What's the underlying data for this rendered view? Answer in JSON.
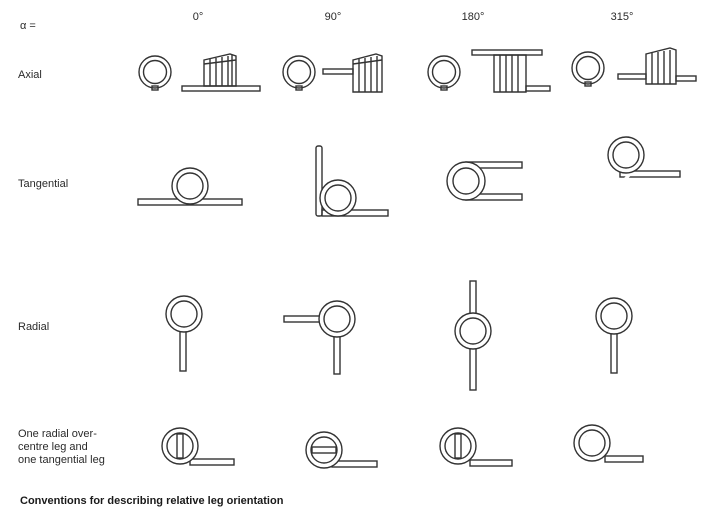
{
  "alpha_label": "α =",
  "angles": [
    "0°",
    "90°",
    "180°",
    "315°"
  ],
  "rows": [
    {
      "label": "Axial"
    },
    {
      "label": "Tangential"
    },
    {
      "label": "Radial"
    },
    {
      "label_lines": [
        "One radial over-",
        "centre leg and",
        "one tangential leg"
      ]
    }
  ],
  "caption": "Conventions for describing relative leg orientation",
  "colors": {
    "stroke": "#333333",
    "text": "#2a2a2a",
    "background": "#ffffff"
  }
}
